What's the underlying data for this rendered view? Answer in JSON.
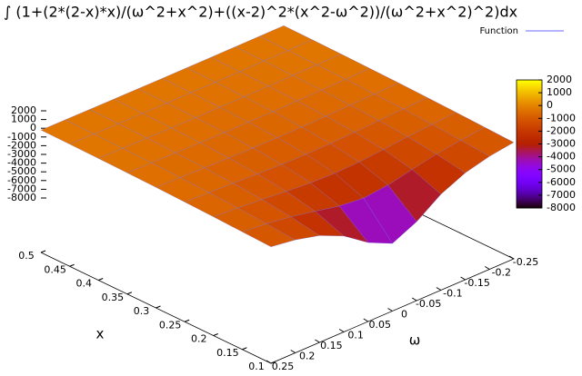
{
  "chart_data": {
    "type": "surface",
    "title": "∫ (1+(2*(2-x)*x)/(ω^2+x^2)+((x-2)^2*(x^2-ω^2))/(ω^2+x^2)^2)dx",
    "xlabel": "x",
    "ylabel": "ω",
    "series": [
      {
        "name": "Function",
        "color": "#6a6aff"
      }
    ],
    "x": [
      0.1,
      0.15,
      0.2,
      0.25,
      0.3,
      0.35,
      0.4,
      0.45,
      0.5
    ],
    "omega": [
      -0.25,
      -0.2,
      -0.15,
      -0.1,
      -0.05,
      0,
      0.05,
      0.1,
      0.15,
      0.2,
      0.25
    ],
    "z": [
      [
        -897,
        -1300,
        -2000,
        -3250,
        -5200,
        -6500,
        -5200,
        -3250,
        -2000,
        -1300,
        -897
      ],
      [
        -765,
        -1040,
        -1444,
        -2000,
        -2600,
        -2889,
        -2600,
        -2000,
        -1444,
        -1040,
        -765
      ],
      [
        -634,
        -813,
        -1040,
        -1300,
        -1529,
        -1625,
        -1529,
        -1300,
        -1040,
        -813,
        -634
      ],
      [
        -520,
        -634,
        -765,
        -897,
        -1000,
        -1040,
        -1000,
        -897,
        -765,
        -634,
        -520
      ],
      [
        -426,
        -500,
        -578,
        -650,
        -703,
        -722,
        -703,
        -650,
        -578,
        -500,
        -426
      ],
      [
        -351,
        -400,
        -448,
        -491,
        -520,
        -531,
        -520,
        -491,
        -448,
        -400,
        -351
      ],
      [
        -292,
        -325,
        -356,
        -382,
        -400,
        -406,
        -400,
        -382,
        -356,
        -325,
        -292
      ],
      [
        -245,
        -268,
        -289,
        -306,
        -317,
        -321,
        -317,
        -306,
        -289,
        -268,
        -245
      ],
      [
        -208,
        -224,
        -239,
        -250,
        -257,
        -260,
        -257,
        -250,
        -239,
        -224,
        -208
      ]
    ],
    "xlim": [
      0.1,
      0.5
    ],
    "xticks": [
      0.1,
      0.15,
      0.2,
      0.25,
      0.3,
      0.35,
      0.4,
      0.45,
      0.5
    ],
    "ylim": [
      -0.25,
      0.25
    ],
    "yticks": [
      -0.25,
      -0.2,
      -0.15,
      -0.1,
      -0.05,
      0,
      0.05,
      0.1,
      0.15,
      0.2,
      0.25
    ],
    "zlim": [
      -8000,
      2000
    ],
    "zticks": [
      2000,
      1000,
      0,
      -1000,
      -2000,
      -3000,
      -4000,
      -5000,
      -6000,
      -7000,
      -8000
    ],
    "cblim": [
      -8000,
      2000
    ],
    "cbticks": [
      2000,
      1000,
      0,
      -1000,
      -2000,
      -3000,
      -4000,
      -5000,
      -6000,
      -7000,
      -8000
    ],
    "legend": "top-right"
  }
}
